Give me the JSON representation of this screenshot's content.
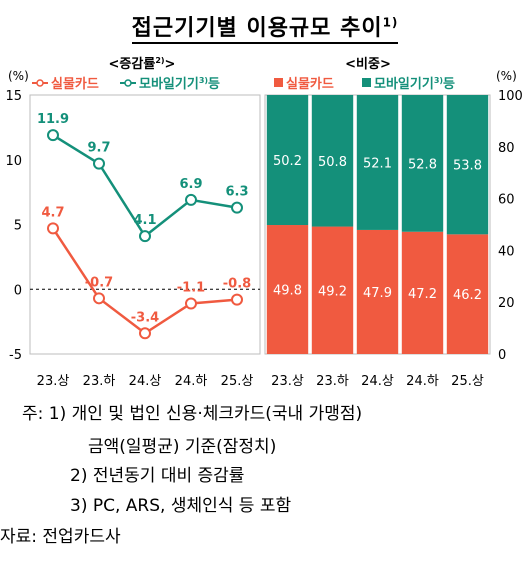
{
  "title": "접근기기별 이용규모 추이",
  "title_sup": "1)",
  "left_panel": {
    "subtitle": "<증감률",
    "subtitle_sup": "2)",
    "subtitle_end": ">",
    "unit": "(%)",
    "legend_card": "실물카드",
    "legend_mobile": "모바일기기",
    "legend_mobile_sup": "3)",
    "legend_mobile_suffix": "등"
  },
  "right_panel": {
    "subtitle": "<비중>",
    "unit": "(%)",
    "legend_card": "실물카드",
    "legend_mobile": "모바일기기",
    "legend_mobile_sup": "3)",
    "legend_mobile_suffix": "등"
  },
  "colors": {
    "card": "#f05a40",
    "mobile": "#14907a",
    "grid": "#000000"
  },
  "chart_data": [
    {
      "type": "line",
      "categories": [
        "23.상",
        "23.하",
        "24.상",
        "24.하",
        "25.상"
      ],
      "series": [
        {
          "name": "모바일기기 등",
          "values": [
            11.9,
            9.7,
            4.1,
            6.9,
            6.3
          ],
          "labels": [
            "11.9",
            "9.7",
            "4.1",
            "6.9",
            "6.3"
          ]
        },
        {
          "name": "실물카드",
          "values": [
            4.7,
            -0.7,
            -3.4,
            -1.1,
            -0.8
          ],
          "labels": [
            "4.7",
            "-0.7",
            "-3.4",
            "-1.1",
            "-0.8"
          ]
        }
      ],
      "ylim": [
        -5,
        15
      ],
      "yticks": [
        "15",
        "10",
        "5",
        "0",
        "-5"
      ],
      "ylabel": "(%)"
    },
    {
      "type": "bar",
      "stacked": true,
      "categories": [
        "23.상",
        "23.하",
        "24.상",
        "24.하",
        "25.상"
      ],
      "series": [
        {
          "name": "실물카드",
          "values": [
            49.8,
            49.2,
            47.9,
            47.2,
            46.2
          ],
          "labels": [
            "49.8",
            "49.2",
            "47.9",
            "47.2",
            "46.2"
          ]
        },
        {
          "name": "모바일기기 등",
          "values": [
            50.2,
            50.8,
            52.1,
            52.8,
            53.8
          ],
          "labels": [
            "50.2",
            "50.8",
            "52.1",
            "52.8",
            "53.8"
          ]
        }
      ],
      "ylim": [
        0,
        100
      ],
      "yticks": [
        "100",
        "80",
        "60",
        "40",
        "20",
        "0"
      ],
      "ylabel": "(%)"
    }
  ],
  "notes": {
    "line1": "주:  1) 개인  및  법인  신용·체크카드(국내  가맹점)",
    "line2": "금액(일평균)  기준(잠정치)",
    "line3": "2) 전년동기  대비  증감률",
    "line4": "3) PC,  ARS,  생체인식  등  포함",
    "source": "자료:  전업카드사"
  }
}
